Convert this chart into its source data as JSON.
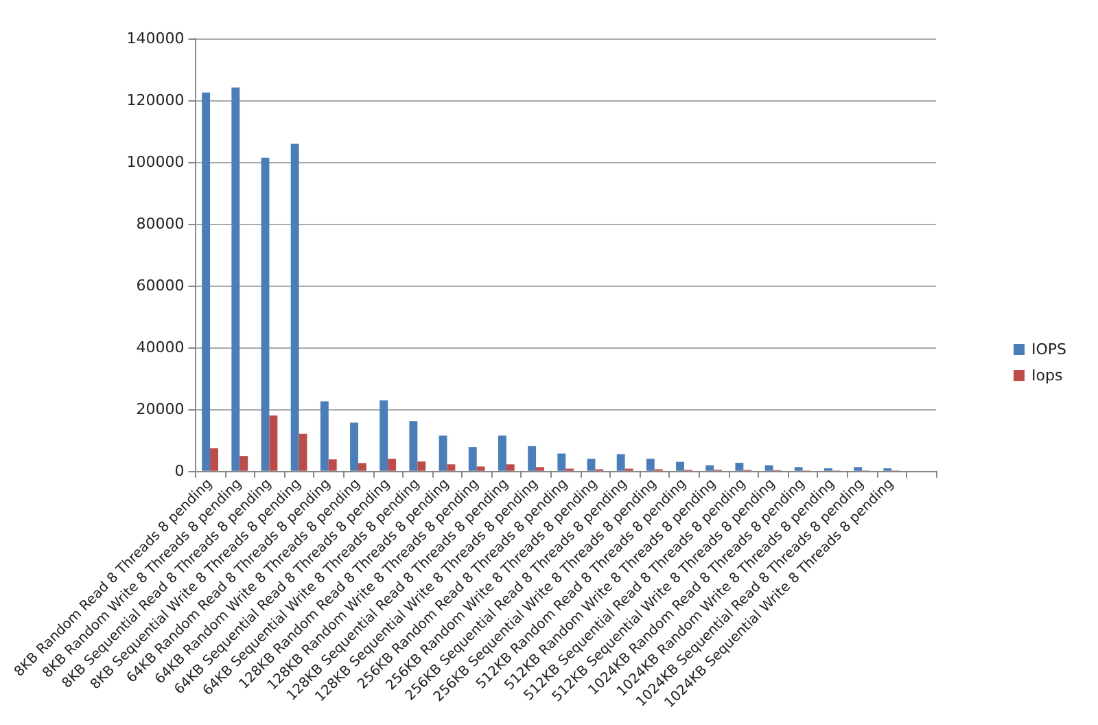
{
  "chart_data": {
    "type": "bar",
    "categories": [
      "8KB Random Read 8 Threads 8 pending",
      "8KB Random Write 8 Threads 8 pending",
      "8KB Sequential Read 8 Threads 8 pending",
      "8KB Sequential Write 8 Threads 8 pending",
      "64KB Random Read 8 Threads 8 pending",
      "64KB Random Write 8 Threads 8 pending",
      "64KB Sequential Read 8 Threads 8 pending",
      "64KB Sequential Write 8 Threads 8 pending",
      "128KB Random Read 8 Threads 8 pending",
      "128KB Random Write 8 Threads 8 pending",
      "128KB Sequential Read 8 Threads 8 pending",
      "128KB Sequential Write 8 Threads 8 pending",
      "256KB Random Read 8 Threads 8 pending",
      "256KB Random Write 8 Threads 8 pending",
      "256KB Sequential Read 8 Threads 8 pending",
      "256KB Sequential Write 8 Threads 8 pending",
      "512KB Random Read 8 Threads 8 pending",
      "512KB Random Write 8 Threads 8 pending",
      "512KB Sequential Read 8 Threads 8 pending",
      "512KB Sequential Write 8 Threads 8 pending",
      "1024KB Random Read 8 Threads 8 pending",
      "1024KB Random Write 8 Threads 8 pending",
      "1024KB Sequential Read 8 Threads 8 pending",
      "1024KB Sequential Write 8 Threads 8 pending",
      null
    ],
    "series": [
      {
        "name": "IOPS",
        "color": "#4a7ebb",
        "values": [
          122500,
          124100,
          101400,
          105900,
          22500,
          15600,
          22800,
          16100,
          11400,
          7700,
          11400,
          8000,
          5600,
          3900,
          5400,
          3900,
          2900,
          1800,
          2600,
          1800,
          1200,
          800,
          1200,
          800,
          null
        ]
      },
      {
        "name": "Iops",
        "color": "#be4b48",
        "values": [
          7300,
          4800,
          17900,
          12000,
          3700,
          2500,
          3900,
          3000,
          2100,
          1400,
          2100,
          1200,
          700,
          500,
          700,
          500,
          300,
          300,
          300,
          200,
          100,
          100,
          100,
          100,
          null
        ]
      }
    ],
    "ylim": [
      0,
      140000
    ],
    "yticks": [
      0,
      20000,
      40000,
      60000,
      80000,
      100000,
      120000,
      140000
    ],
    "grid": "y",
    "legend": "right"
  }
}
